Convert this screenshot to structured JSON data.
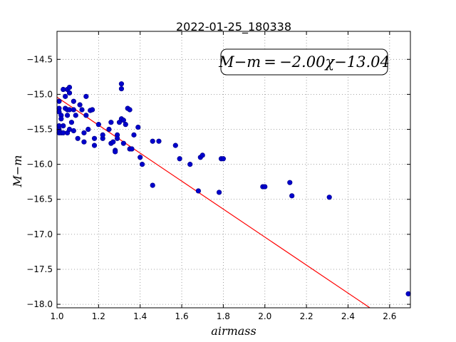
{
  "chart_data": {
    "type": "scatter",
    "title": "2022-01-25_180338",
    "xlabel": "airmass",
    "ylabel": "M−m",
    "xlim": [
      1.0,
      2.7
    ],
    "ylim": [
      -18.05,
      -14.1
    ],
    "y_inverted": true,
    "grid": true,
    "x_ticks": [
      1.0,
      1.2,
      1.4,
      1.6,
      1.8,
      2.0,
      2.2,
      2.4,
      2.6
    ],
    "x_tick_labels": [
      "1.0",
      "1.2",
      "1.4",
      "1.6",
      "1.8",
      "2.0",
      "2.2",
      "2.4",
      "2.6"
    ],
    "y_ticks": [
      -14.5,
      -15.0,
      -15.5,
      -16.0,
      -16.5,
      -17.0,
      -17.5,
      -18.0
    ],
    "y_tick_labels": [
      "−14.5",
      "−15.0",
      "−15.5",
      "−16.0",
      "−16.5",
      "−17.0",
      "−17.5",
      "−18.0"
    ],
    "annotation": "M−m = −2.00χ−13.04",
    "colors": {
      "points": "#0000cc",
      "points_edge": "#000080",
      "fit": "#ff0000",
      "grid": "#888888"
    },
    "fit": {
      "slope": -2.0,
      "intercept": -13.04
    },
    "points": [
      [
        1.01,
        -15.1
      ],
      [
        1.01,
        -15.2
      ],
      [
        1.01,
        -15.25
      ],
      [
        1.01,
        -15.45
      ],
      [
        1.01,
        -15.5
      ],
      [
        1.01,
        -15.55
      ],
      [
        1.02,
        -15.55
      ],
      [
        1.02,
        -15.3
      ],
      [
        1.02,
        -15.35
      ],
      [
        1.03,
        -14.93
      ],
      [
        1.03,
        -15.45
      ],
      [
        1.03,
        -15.55
      ],
      [
        1.04,
        -15.03
      ],
      [
        1.04,
        -15.2
      ],
      [
        1.05,
        -14.93
      ],
      [
        1.05,
        -15.22
      ],
      [
        1.05,
        -15.3
      ],
      [
        1.05,
        -15.55
      ],
      [
        1.06,
        -14.9
      ],
      [
        1.06,
        -14.98
      ],
      [
        1.06,
        -15.22
      ],
      [
        1.06,
        -15.5
      ],
      [
        1.07,
        -15.4
      ],
      [
        1.08,
        -15.1
      ],
      [
        1.08,
        -15.22
      ],
      [
        1.08,
        -15.52
      ],
      [
        1.09,
        -15.3
      ],
      [
        1.1,
        -15.63
      ],
      [
        1.11,
        -15.15
      ],
      [
        1.12,
        -15.22
      ],
      [
        1.13,
        -15.55
      ],
      [
        1.13,
        -15.68
      ],
      [
        1.14,
        -15.03
      ],
      [
        1.14,
        -15.3
      ],
      [
        1.15,
        -15.5
      ],
      [
        1.16,
        -15.23
      ],
      [
        1.17,
        -15.22
      ],
      [
        1.18,
        -15.63
      ],
      [
        1.18,
        -15.73
      ],
      [
        1.2,
        -15.43
      ],
      [
        1.22,
        -15.63
      ],
      [
        1.22,
        -15.58
      ],
      [
        1.25,
        -15.5
      ],
      [
        1.26,
        -15.4
      ],
      [
        1.26,
        -15.7
      ],
      [
        1.27,
        -15.68
      ],
      [
        1.28,
        -15.8
      ],
      [
        1.28,
        -15.82
      ],
      [
        1.29,
        -15.58
      ],
      [
        1.29,
        -15.63
      ],
      [
        1.3,
        -15.4
      ],
      [
        1.31,
        -14.85
      ],
      [
        1.31,
        -14.92
      ],
      [
        1.31,
        -15.35
      ],
      [
        1.32,
        -15.37
      ],
      [
        1.32,
        -15.7
      ],
      [
        1.33,
        -15.43
      ],
      [
        1.34,
        -15.2
      ],
      [
        1.35,
        -15.22
      ],
      [
        1.35,
        -15.78
      ],
      [
        1.36,
        -15.78
      ],
      [
        1.37,
        -15.58
      ],
      [
        1.39,
        -15.47
      ],
      [
        1.4,
        -15.9
      ],
      [
        1.41,
        -16.0
      ],
      [
        1.46,
        -15.67
      ],
      [
        1.46,
        -16.3
      ],
      [
        1.49,
        -15.67
      ],
      [
        1.57,
        -15.73
      ],
      [
        1.59,
        -15.92
      ],
      [
        1.64,
        -16.0
      ],
      [
        1.68,
        -16.38
      ],
      [
        1.69,
        -15.9
      ],
      [
        1.7,
        -15.87
      ],
      [
        1.78,
        -16.4
      ],
      [
        1.79,
        -15.92
      ],
      [
        1.8,
        -15.92
      ],
      [
        1.99,
        -16.32
      ],
      [
        2.0,
        -16.32
      ],
      [
        2.12,
        -16.26
      ],
      [
        2.13,
        -16.45
      ],
      [
        2.31,
        -16.47
      ],
      [
        2.69,
        -17.85
      ]
    ]
  }
}
